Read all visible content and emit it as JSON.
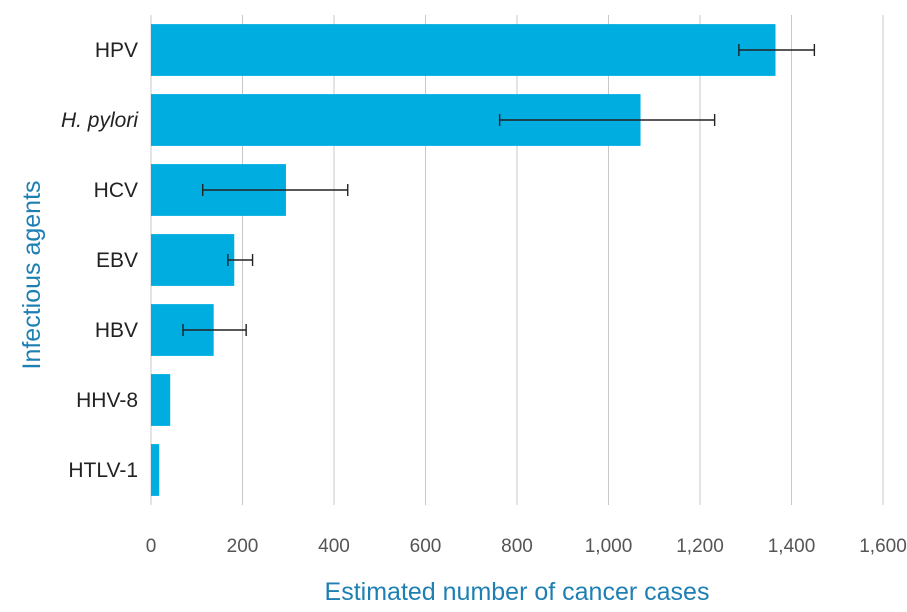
{
  "chart_data": {
    "type": "bar",
    "orientation": "horizontal",
    "categories": [
      "HPV",
      "H. pylori",
      "HCV",
      "EBV",
      "HBV",
      "HHV-8",
      "HTLV-1"
    ],
    "italic_categories": [
      "H. pylori"
    ],
    "values": [
      1365,
      1070,
      295,
      182,
      137,
      42,
      18
    ],
    "error_low": [
      1285,
      762,
      113,
      168,
      70,
      null,
      null
    ],
    "error_high": [
      1450,
      1232,
      430,
      222,
      208,
      null,
      null
    ],
    "xlabel": "Estimated number of cancer cases",
    "ylabel": "Infectious agents",
    "xlim": [
      0,
      1600
    ],
    "x_ticks": [
      0,
      200,
      400,
      600,
      800,
      1000,
      1200,
      1400,
      1600
    ],
    "x_tick_labels": [
      "0",
      "200",
      "400",
      "600",
      "800",
      "1,000",
      "1,200",
      "1,400",
      "1,600"
    ],
    "grid": "vertical",
    "colors": {
      "bar": "#00ADE1",
      "axis_title": "#1E7FB3",
      "grid": "#C8C8C8",
      "error_bar": "#222222"
    }
  }
}
